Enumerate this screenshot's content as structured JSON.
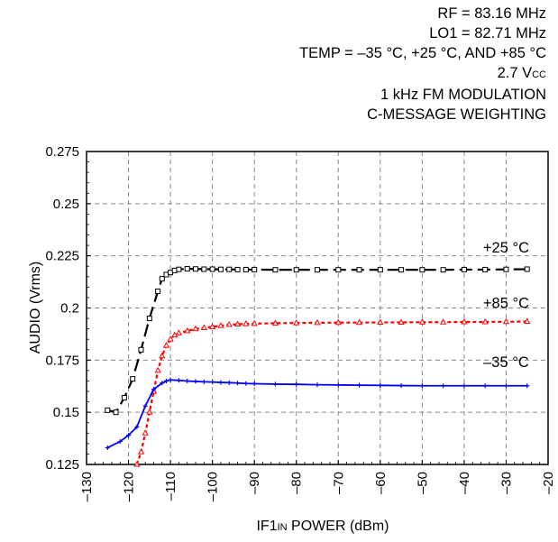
{
  "conditions": [
    "RF = 83.16 MHz",
    "LO1 = 82.71 MHz",
    "TEMP = –35 °C, +25 °C, AND +85 °C",
    "2.7 V",
    "1 kHz FM MODULATION",
    "C-MESSAGE WEIGHTING"
  ],
  "vcc_subscript": "CC",
  "chart_data": {
    "type": "line",
    "xlabel": "IF1IN POWER (dBm)",
    "ylabel": "AUDIO (Vrms)",
    "xlim": [
      -130,
      -20
    ],
    "ylim": [
      0.125,
      0.275
    ],
    "x_ticks": [
      -130,
      -120,
      -110,
      -100,
      -90,
      -80,
      -70,
      -60,
      -50,
      -40,
      -30,
      -20
    ],
    "x_tick_labels": [
      "–130",
      "–120",
      "–110",
      "–100",
      "–90",
      "–80",
      "–70",
      "–60",
      "–50",
      "–40",
      "–30",
      "–20"
    ],
    "y_ticks": [
      0.125,
      0.15,
      0.175,
      0.2,
      0.225,
      0.25,
      0.275
    ],
    "y_tick_labels": [
      "0.125",
      "0.15",
      "0.175",
      "0.2",
      "0.225",
      "0.25",
      "0.275"
    ],
    "grid": true,
    "series": [
      {
        "name": "+25 °C",
        "color": "#000000",
        "dash": "long-dash",
        "marker": "square",
        "x": [
          -125,
          -123,
          -121,
          -119,
          -117,
          -115,
          -113,
          -112,
          -111,
          -110,
          -109,
          -108,
          -106,
          -104,
          -102,
          -100,
          -98,
          -96,
          -94,
          -92,
          -90,
          -85,
          -80,
          -75,
          -70,
          -65,
          -60,
          -55,
          -50,
          -45,
          -40,
          -35,
          -30,
          -25
        ],
        "y": [
          0.151,
          0.15,
          0.157,
          0.166,
          0.18,
          0.195,
          0.208,
          0.214,
          0.216,
          0.217,
          0.218,
          0.2185,
          0.2188,
          0.2187,
          0.2186,
          0.2186,
          0.2185,
          0.2185,
          0.2184,
          0.2184,
          0.2184,
          0.2183,
          0.2183,
          0.2183,
          0.2183,
          0.2183,
          0.2183,
          0.2183,
          0.2183,
          0.2183,
          0.2184,
          0.2184,
          0.2185,
          0.2186
        ]
      },
      {
        "name": "+85 °C",
        "color": "#ff0000",
        "dash": "short-dash",
        "marker": "triangle",
        "x": [
          -118,
          -117,
          -116,
          -115,
          -114,
          -113,
          -112,
          -111,
          -110,
          -109,
          -108,
          -106,
          -104,
          -102,
          -100,
          -98,
          -96,
          -94,
          -92,
          -90,
          -85,
          -80,
          -75,
          -70,
          -65,
          -60,
          -55,
          -50,
          -45,
          -40,
          -35,
          -30,
          -25
        ],
        "y": [
          0.125,
          0.131,
          0.14,
          0.15,
          0.16,
          0.17,
          0.177,
          0.182,
          0.185,
          0.187,
          0.188,
          0.189,
          0.19,
          0.1905,
          0.191,
          0.1915,
          0.192,
          0.1922,
          0.1924,
          0.1925,
          0.1927,
          0.1928,
          0.1929,
          0.193,
          0.193,
          0.1931,
          0.1931,
          0.1932,
          0.1932,
          0.1933,
          0.1933,
          0.1934,
          0.1935
        ]
      },
      {
        "name": "–35 °C",
        "color": "#0000ff",
        "dash": "solid",
        "marker": "plus",
        "x": [
          -125,
          -122,
          -120,
          -118,
          -116,
          -114,
          -112,
          -111,
          -110,
          -108,
          -106,
          -104,
          -102,
          -100,
          -98,
          -96,
          -94,
          -92,
          -90,
          -85,
          -80,
          -75,
          -70,
          -65,
          -60,
          -55,
          -50,
          -45,
          -40,
          -35,
          -30,
          -25
        ],
        "y": [
          0.133,
          0.136,
          0.139,
          0.143,
          0.153,
          0.161,
          0.164,
          0.165,
          0.1655,
          0.1653,
          0.165,
          0.1648,
          0.1646,
          0.1645,
          0.1643,
          0.1642,
          0.164,
          0.1638,
          0.1637,
          0.1635,
          0.1634,
          0.1632,
          0.1631,
          0.163,
          0.1629,
          0.1628,
          0.1627,
          0.1627,
          0.1627,
          0.1627,
          0.1627,
          0.1627
        ]
      }
    ],
    "series_labels": [
      {
        "text": "+25 °C",
        "x": -30,
        "y": 0.2265
      },
      {
        "text": "+85 °C",
        "x": -30,
        "y": 0.2
      },
      {
        "text": "–35 °C",
        "x": -30,
        "y": 0.1717
      }
    ]
  }
}
